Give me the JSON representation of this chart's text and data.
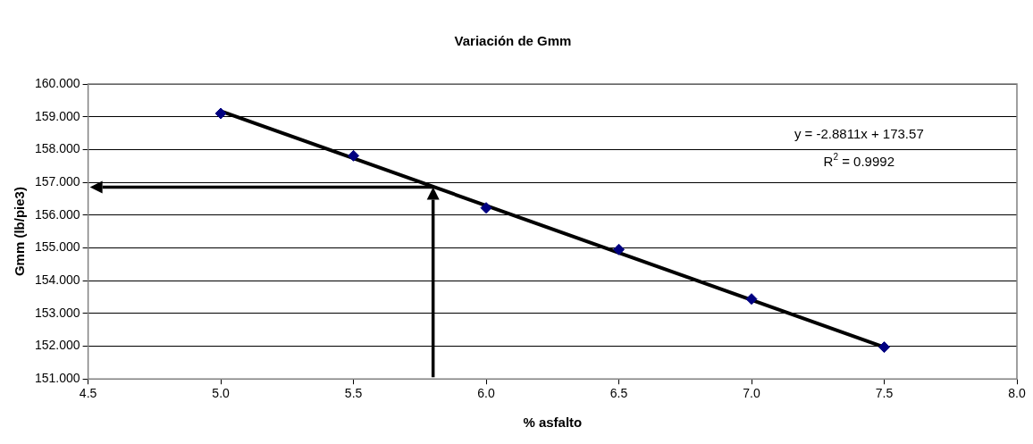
{
  "chart_data": {
    "type": "scatter",
    "title": "Variación de Gmm",
    "xlabel": "% asfalto",
    "ylabel": "Gmm (lb/pie3)",
    "x": [
      5.0,
      5.5,
      6.0,
      6.5,
      7.0,
      7.5
    ],
    "series": [
      {
        "type": "scatter",
        "color": "#000080",
        "values": [
          159.1,
          157.81,
          156.22,
          154.95,
          153.44,
          151.97
        ],
        "marker": "diamond"
      },
      {
        "type": "line",
        "color": "#000000",
        "x": [
          5.0,
          7.5
        ],
        "values": [
          159.17,
          151.97
        ],
        "marker": "none"
      }
    ],
    "xlim": [
      4.5,
      8.0
    ],
    "xticks": [
      {
        "value": 4.5,
        "label": "4.5"
      },
      {
        "value": 5,
        "label": "5.0"
      },
      {
        "value": 5.5,
        "label": "5.5"
      },
      {
        "value": 6,
        "label": "6.0"
      },
      {
        "value": 6.5,
        "label": "6.5"
      },
      {
        "value": 7,
        "label": "7.0"
      },
      {
        "value": 7.5,
        "label": "7.5"
      },
      {
        "value": 8,
        "label": "8.0"
      }
    ],
    "ylim": [
      151,
      160
    ],
    "yticks": [
      {
        "value": 151,
        "label": "151.000"
      },
      {
        "value": 152,
        "label": "152.000"
      },
      {
        "value": 153,
        "label": "153.000"
      },
      {
        "value": 154,
        "label": "154.000"
      },
      {
        "value": 155,
        "label": "155.000"
      },
      {
        "value": 156,
        "label": "156.000"
      },
      {
        "value": 157,
        "label": "157.000"
      },
      {
        "value": 158,
        "label": "158.000"
      },
      {
        "value": 159,
        "label": "159.000"
      },
      {
        "value": 160,
        "label": "160.000"
      }
    ],
    "grid": "y",
    "legend": false,
    "ref_lines": [
      {
        "axis": "x",
        "value": 5.8,
        "color": "#000000"
      },
      {
        "axis": "y",
        "value": 156.85,
        "color": "#000000"
      }
    ],
    "annotations": [
      "y = -2.8811x + 173.57",
      "R$^{2}$ = 0.9992"
    ]
  }
}
